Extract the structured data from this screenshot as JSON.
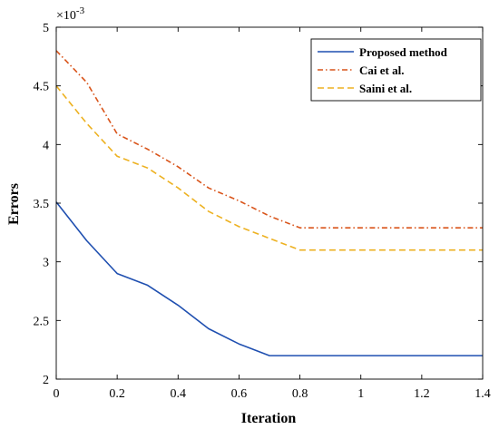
{
  "chart_data": {
    "type": "line",
    "xlabel": "Iteration",
    "ylabel": "Errors",
    "y_multiplier_label": "×10⁻³",
    "xlim": [
      0,
      1.4
    ],
    "ylim": [
      0.002,
      0.005
    ],
    "x_ticks": [
      0,
      0.2,
      0.4,
      0.6,
      0.8,
      1,
      1.2,
      1.4
    ],
    "x_tick_labels": [
      "0",
      "0.2",
      "0.4",
      "0.6",
      "0.8",
      "1",
      "1.2",
      "1.4"
    ],
    "y_ticks": [
      0.002,
      0.0025,
      0.003,
      0.0035,
      0.004,
      0.0045,
      0.005
    ],
    "y_tick_labels": [
      "2",
      "2.5",
      "3",
      "3.5",
      "4",
      "4.5",
      "5"
    ],
    "grid": false,
    "legend_position": "top-right",
    "x": [
      0,
      0.1,
      0.2,
      0.3,
      0.4,
      0.5,
      0.6,
      0.7,
      0.8,
      0.9,
      1.0,
      1.1,
      1.2,
      1.3,
      1.4
    ],
    "series": [
      {
        "name": "Proposed method",
        "color": "#1f4fb0",
        "style": "solid",
        "values": [
          0.00351,
          0.00318,
          0.0029,
          0.0028,
          0.00263,
          0.00243,
          0.0023,
          0.0022,
          0.0022,
          0.0022,
          0.0022,
          0.0022,
          0.0022,
          0.0022,
          0.0022
        ]
      },
      {
        "name": "Cai et al.",
        "color": "#d9541a",
        "style": "dashdot",
        "values": [
          0.0048,
          0.00453,
          0.00409,
          0.00396,
          0.00381,
          0.00363,
          0.00352,
          0.00339,
          0.00329,
          0.00329,
          0.00329,
          0.00329,
          0.00329,
          0.00329,
          0.00329
        ]
      },
      {
        "name": "Saini et al.",
        "color": "#edb120",
        "style": "dashed",
        "values": [
          0.0045,
          0.00418,
          0.0039,
          0.0038,
          0.00363,
          0.00343,
          0.0033,
          0.0032,
          0.0031,
          0.0031,
          0.0031,
          0.0031,
          0.0031,
          0.0031,
          0.0031
        ]
      }
    ]
  }
}
